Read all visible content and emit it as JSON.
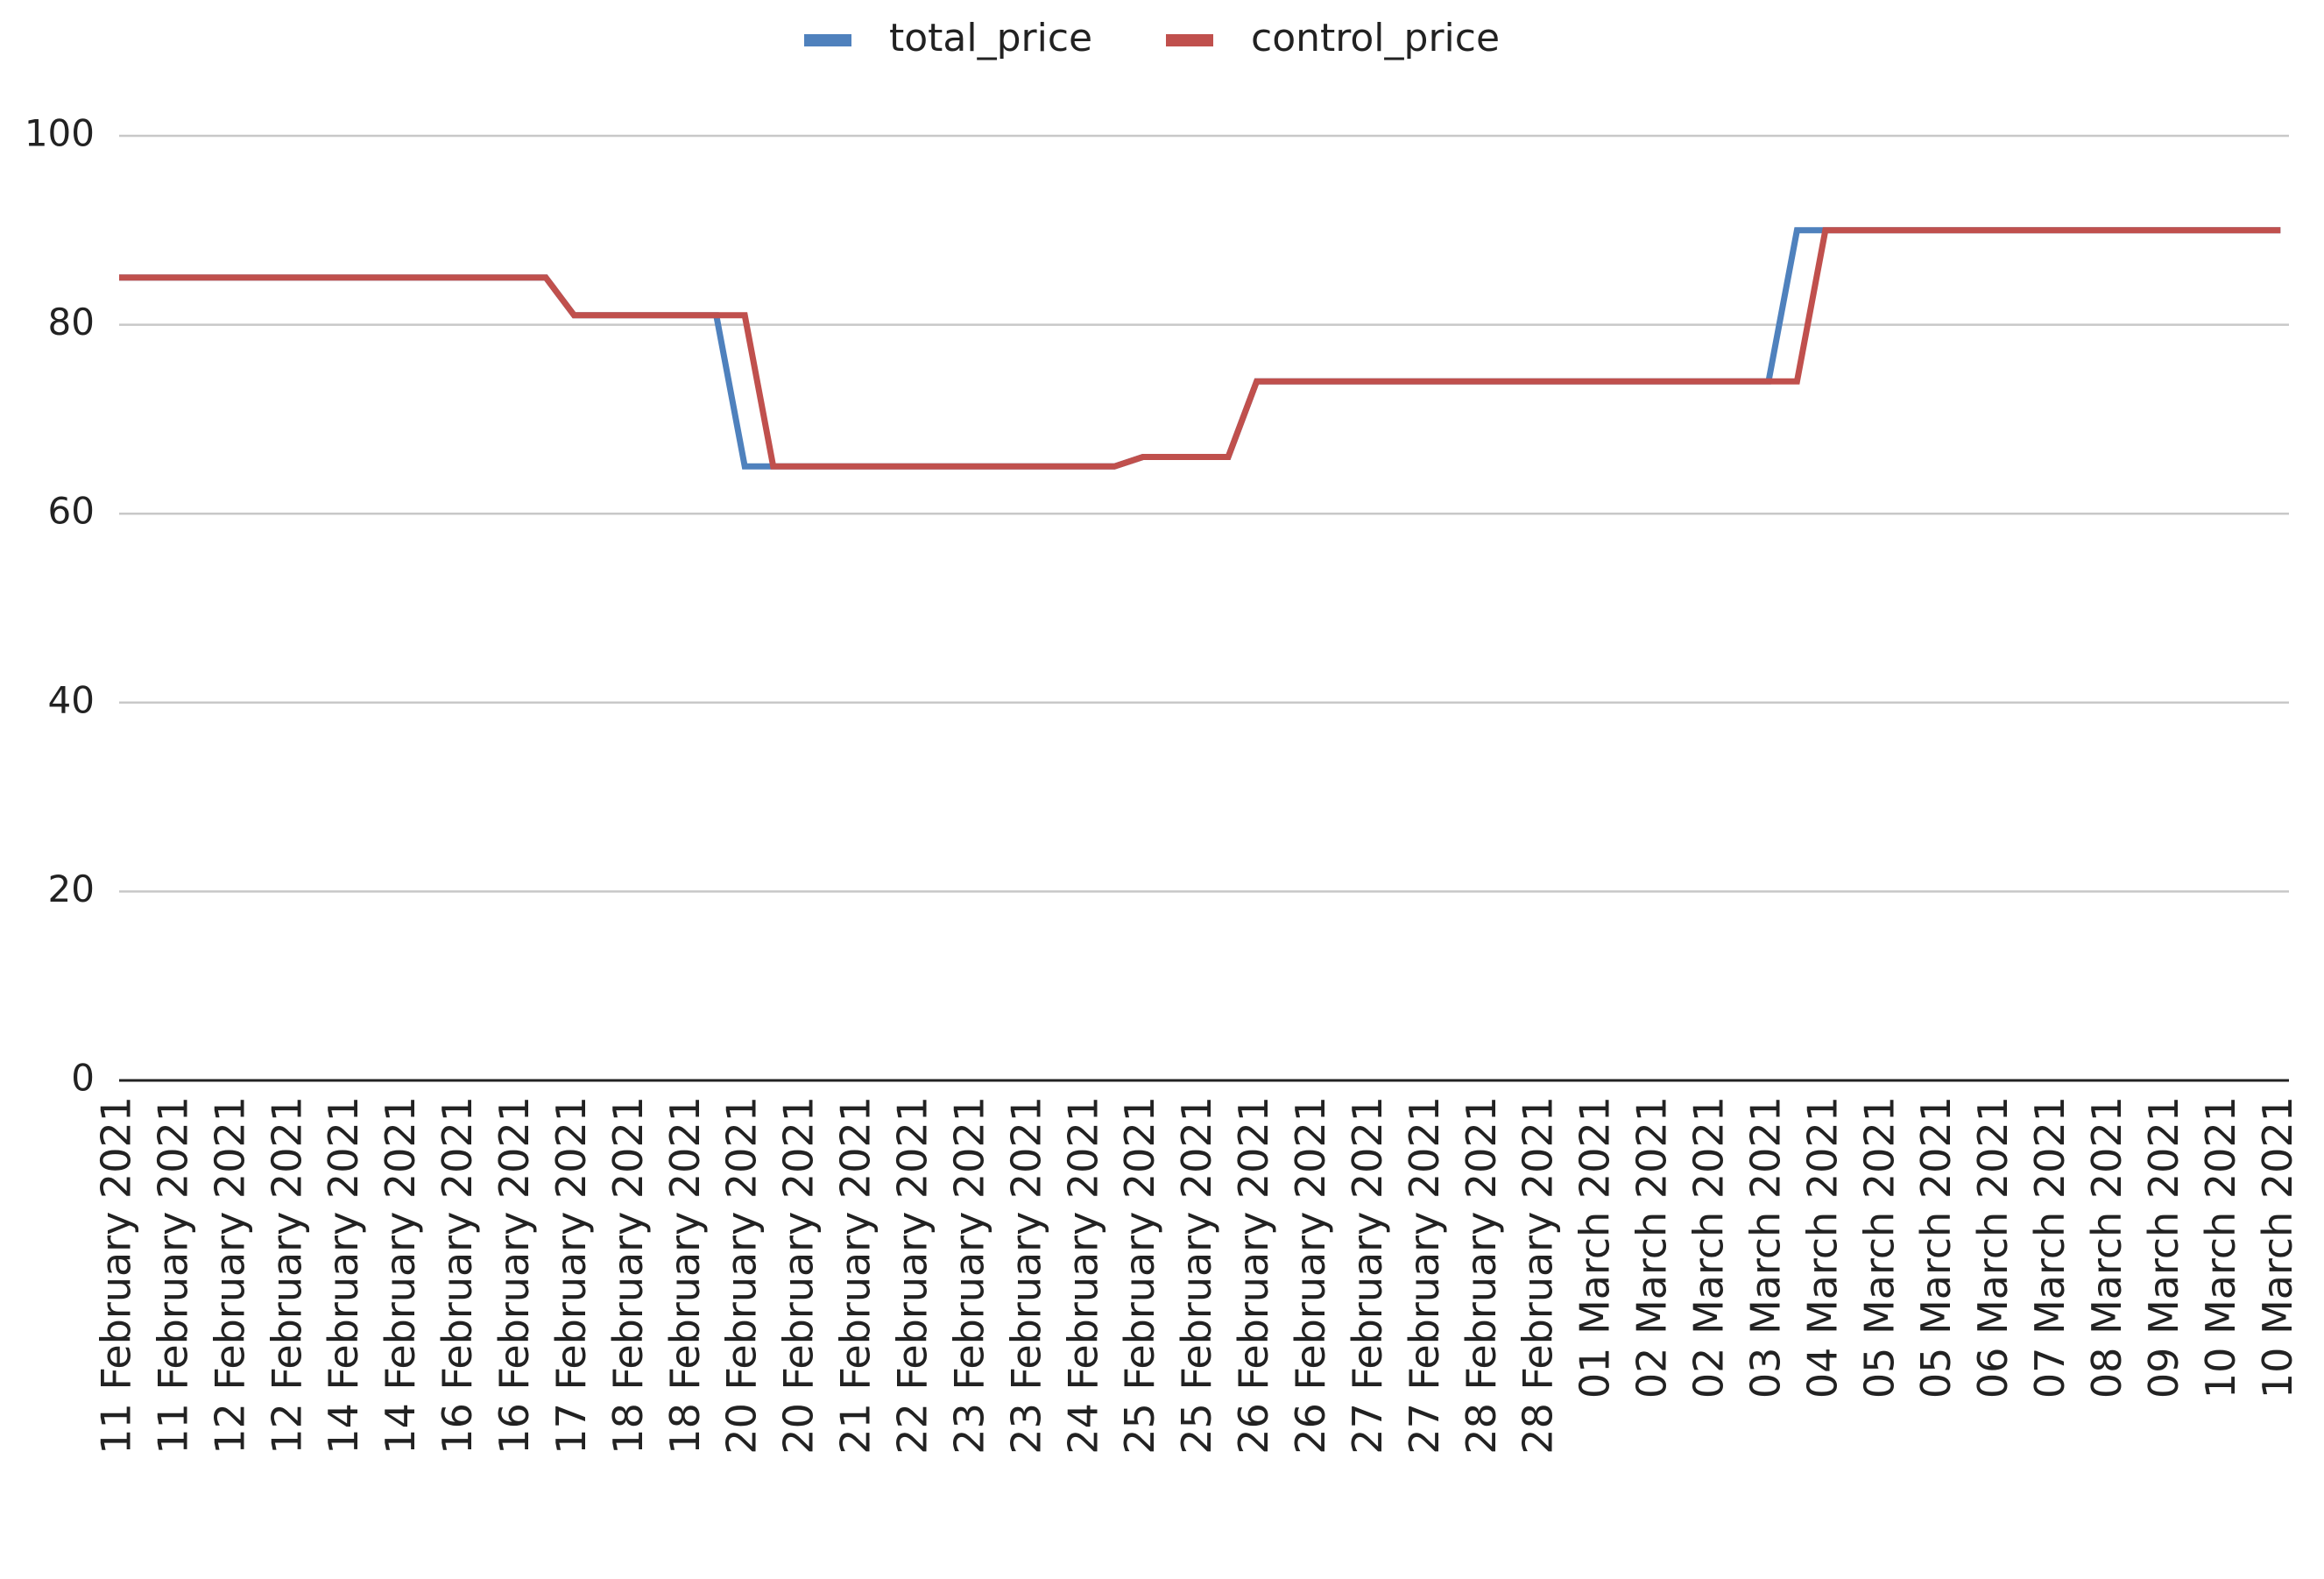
{
  "chart_data": {
    "type": "line",
    "categories": [
      "11 February 2021",
      null,
      "11 February 2021",
      null,
      "12 February 2021",
      null,
      "12 February 2021",
      null,
      "14 February 2021",
      null,
      "14 February 2021",
      null,
      "16 February 2021",
      null,
      "16 February 2021",
      null,
      "17 February 2021",
      null,
      "18 February 2021",
      null,
      "18 February 2021",
      null,
      "20 February 2021",
      null,
      "20 February 2021",
      null,
      "21 February 2021",
      null,
      "22 February 2021",
      null,
      "23 February 2021",
      null,
      "23 February 2021",
      null,
      "24 February 2021",
      null,
      "25 February 2021",
      null,
      "25 February 2021",
      null,
      "26 February 2021",
      null,
      "26 February 2021",
      null,
      "27 February 2021",
      null,
      "27 February 2021",
      null,
      "28 February 2021",
      null,
      "28 February 2021",
      null,
      "01 March 2021",
      null,
      "02 March 2021",
      null,
      "02 March 2021",
      null,
      "03 March 2021",
      null,
      "04 March 2021",
      null,
      "05 March 2021",
      null,
      "05 March 2021",
      null,
      "06 March 2021",
      null,
      "07 March 2021",
      null,
      "08 March 2021",
      null,
      "09 March 2021",
      null,
      "10 March 2021",
      null,
      "10 March 2021"
    ],
    "series": [
      {
        "name": "total_price",
        "color": "#4f81bd",
        "values": [
          85,
          85,
          85,
          85,
          85,
          85,
          85,
          85,
          85,
          85,
          85,
          85,
          85,
          85,
          85,
          85,
          81,
          81,
          81,
          81,
          81,
          81,
          65,
          65,
          65,
          65,
          65,
          65,
          65,
          65,
          65,
          65,
          65,
          65,
          65,
          65,
          66,
          66,
          66,
          66,
          74,
          74,
          74,
          74,
          74,
          74,
          74,
          74,
          74,
          74,
          74,
          74,
          74,
          74,
          74,
          74,
          74,
          74,
          74,
          90,
          90,
          90,
          90,
          90,
          90,
          90,
          90,
          90,
          90,
          90,
          90,
          90,
          90,
          90,
          90,
          90,
          90
        ]
      },
      {
        "name": "control_price",
        "color": "#c0504d",
        "values": [
          85,
          85,
          85,
          85,
          85,
          85,
          85,
          85,
          85,
          85,
          85,
          85,
          85,
          85,
          85,
          85,
          81,
          81,
          81,
          81,
          81,
          81,
          81,
          65,
          65,
          65,
          65,
          65,
          65,
          65,
          65,
          65,
          65,
          65,
          65,
          65,
          66,
          66,
          66,
          66,
          74,
          74,
          74,
          74,
          74,
          74,
          74,
          74,
          74,
          74,
          74,
          74,
          74,
          74,
          74,
          74,
          74,
          74,
          74,
          74,
          90,
          90,
          90,
          90,
          90,
          90,
          90,
          90,
          90,
          90,
          90,
          90,
          90,
          90,
          90,
          90,
          90
        ]
      }
    ],
    "ylim": [
      0,
      100
    ],
    "yticks": [
      0,
      20,
      40,
      60,
      80,
      100
    ],
    "grid": true,
    "legend": "top"
  }
}
